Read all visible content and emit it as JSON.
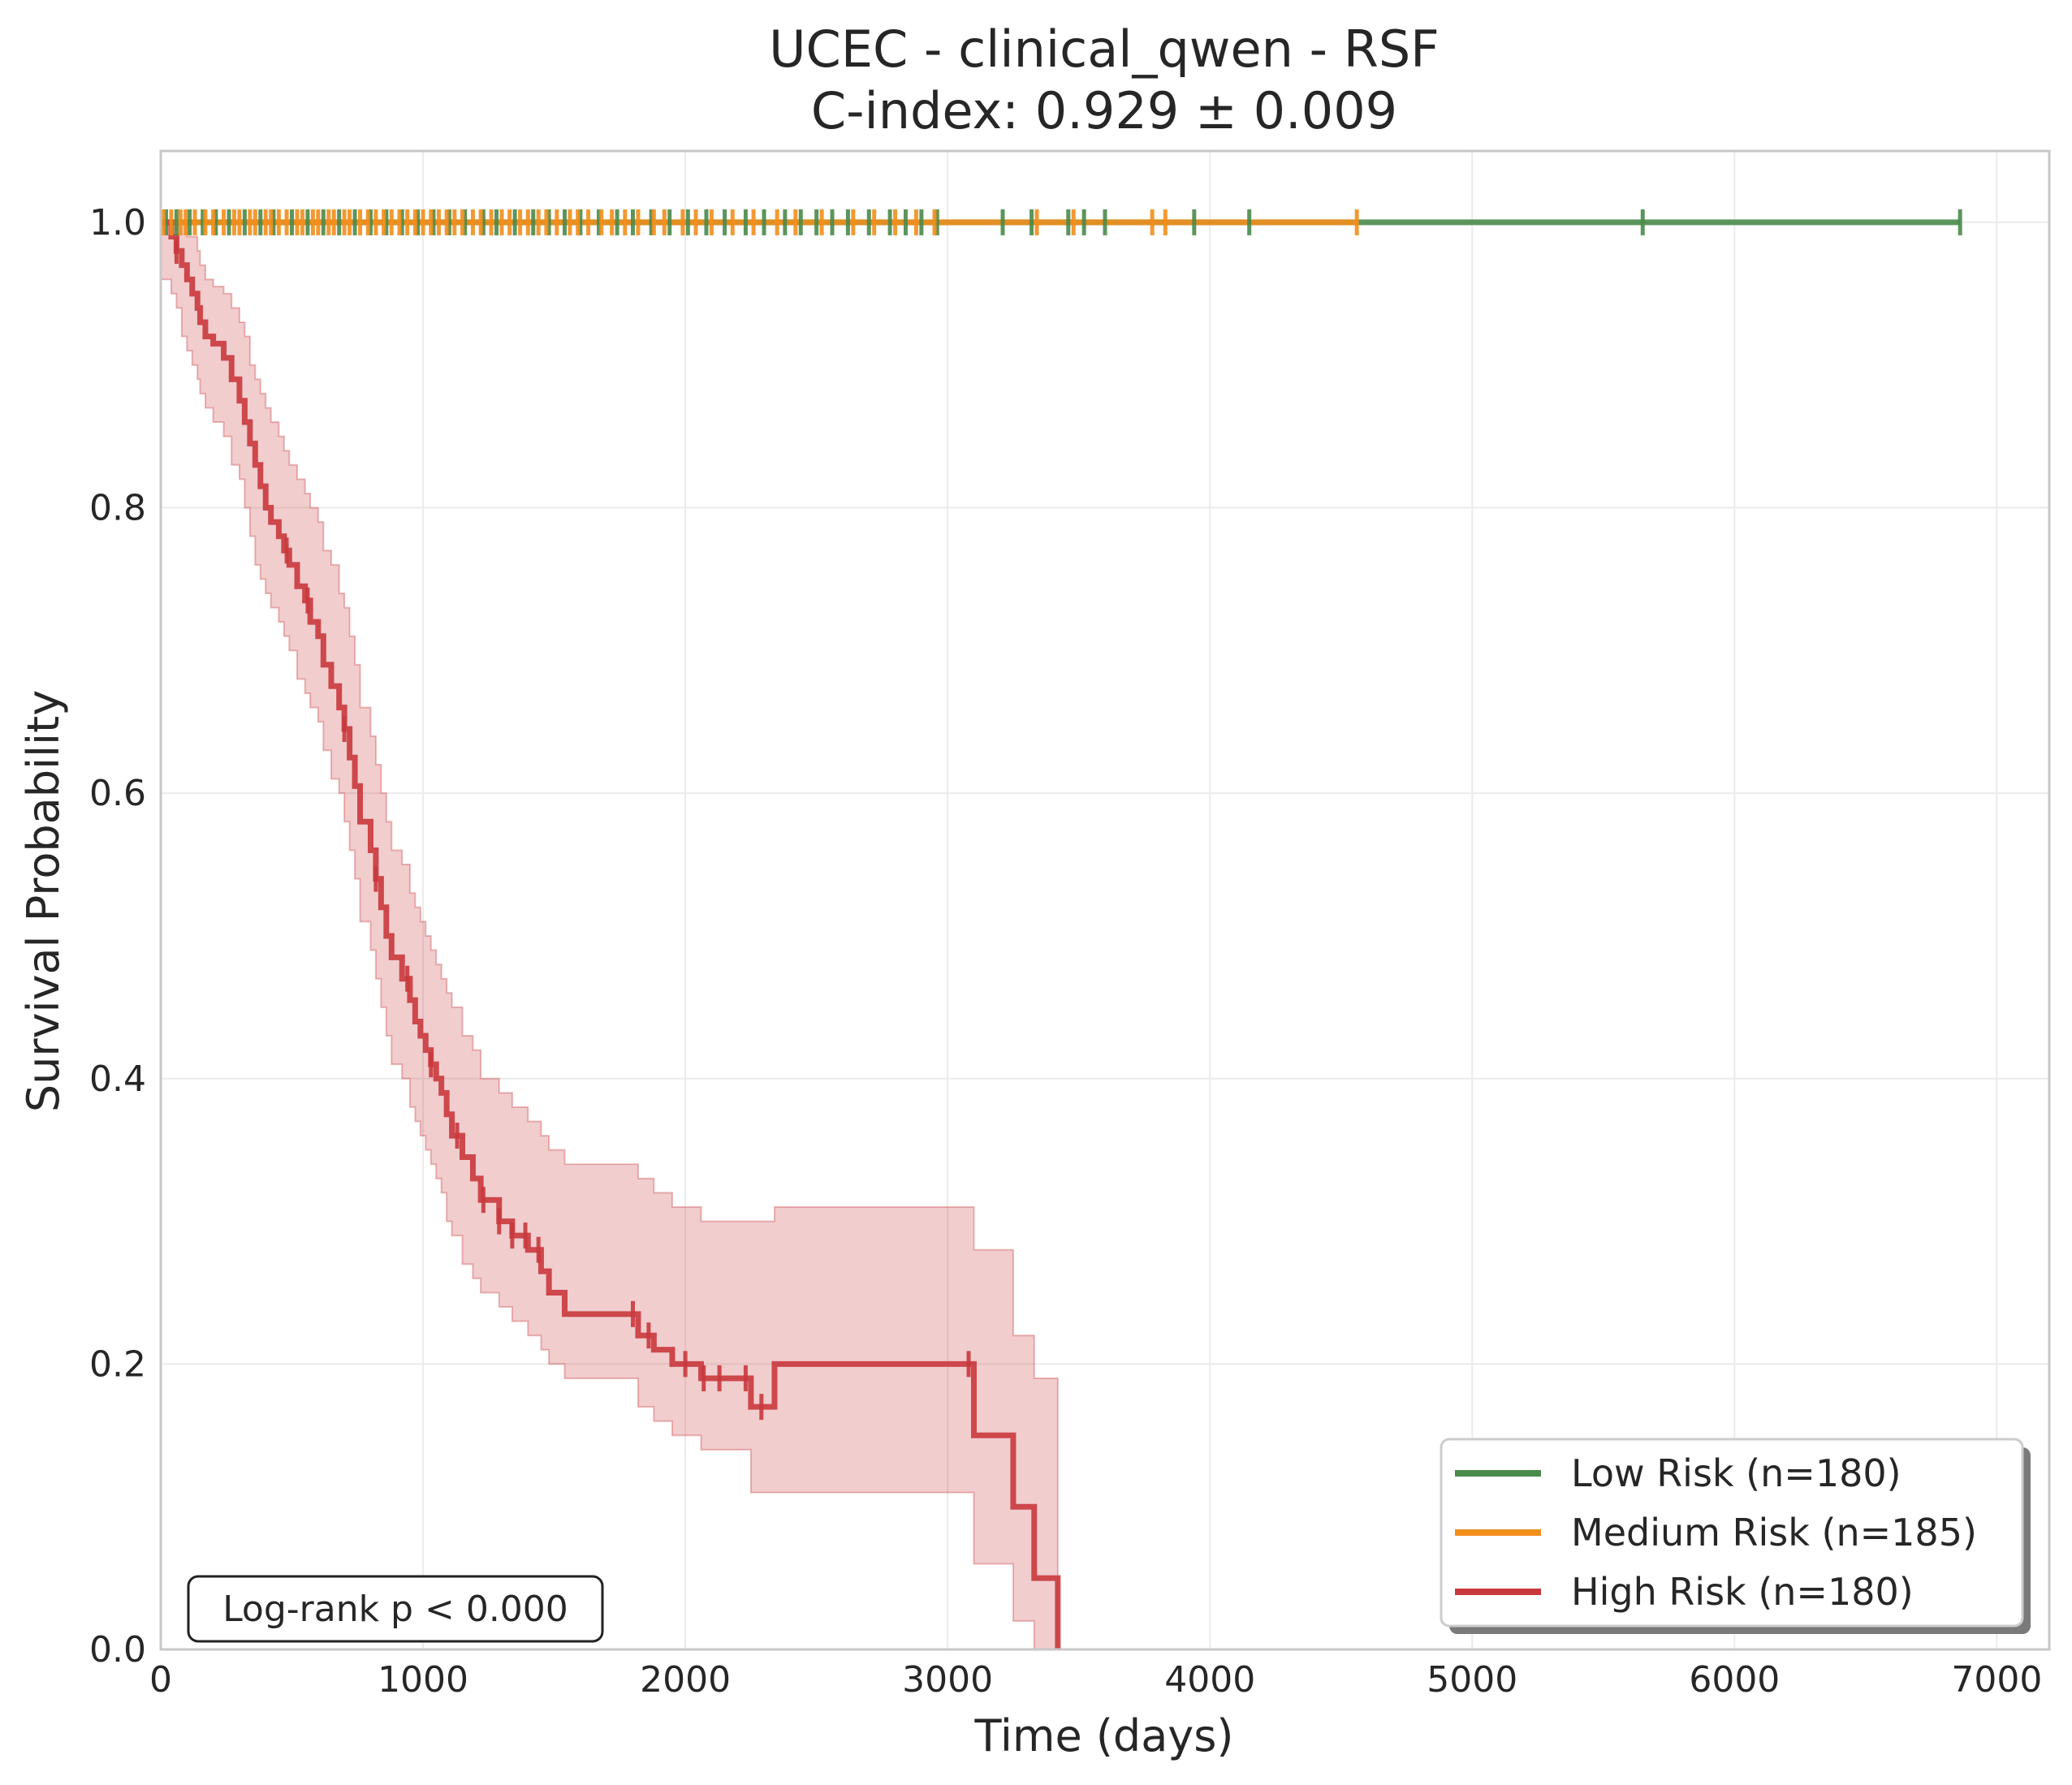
{
  "chart_data": {
    "type": "line",
    "subtype": "kaplan-meier",
    "title": "UCEC - clinical_qwen - RSF",
    "subtitle": "C-index: 0.929 ± 0.009",
    "xlabel": "Time (days)",
    "ylabel": "Survival Probability",
    "xlim": [
      0,
      7200
    ],
    "ylim": [
      0,
      1.05
    ],
    "x_ticks": [
      0,
      1000,
      2000,
      3000,
      4000,
      5000,
      6000,
      7000
    ],
    "x_tick_labels": [
      "0",
      "1000",
      "2000",
      "3000",
      "4000",
      "5000",
      "6000",
      "7000"
    ],
    "y_ticks": [
      0.0,
      0.2,
      0.4,
      0.6,
      0.8,
      1.0
    ],
    "y_tick_labels": [
      "0.0",
      "0.2",
      "0.4",
      "0.6",
      "0.8",
      "1.0"
    ],
    "grid": true,
    "legend_position": "bottom-right",
    "annotation": "Log-rank p < 0.000",
    "series": [
      {
        "name": "Low Risk (n=180)",
        "color": "#4a8a4a",
        "x": [
          0,
          6860
        ],
        "y": [
          1.0,
          1.0
        ],
        "censor_times": [
          20,
          60,
          110,
          160,
          210,
          260,
          320,
          380,
          430,
          500,
          560,
          620,
          680,
          740,
          800,
          860,
          920,
          980,
          1040,
          1100,
          1160,
          1230,
          1280,
          1350,
          1420,
          1480,
          1540,
          1600,
          1670,
          1740,
          1800,
          1870,
          1940,
          2010,
          2080,
          2150,
          2230,
          2300,
          2380,
          2440,
          2500,
          2560,
          2620,
          2700,
          2780,
          2840,
          2900,
          2960,
          3210,
          3320,
          3460,
          3520,
          3600,
          3940,
          4150,
          5650,
          6860
        ]
      },
      {
        "name": "Medium Risk (n=185)",
        "color": "#f28e1c",
        "x": [
          0,
          4560
        ],
        "y": [
          1.0,
          1.0
        ],
        "censor_times": [
          10,
          40,
          75,
          95,
          130,
          170,
          200,
          240,
          280,
          300,
          340,
          360,
          400,
          420,
          450,
          480,
          520,
          540,
          580,
          600,
          640,
          660,
          700,
          720,
          760,
          790,
          820,
          850,
          880,
          910,
          940,
          970,
          1000,
          1030,
          1060,
          1090,
          1120,
          1150,
          1190,
          1220,
          1260,
          1300,
          1330,
          1370,
          1400,
          1440,
          1470,
          1510,
          1560,
          1590,
          1630,
          1680,
          1720,
          1770,
          1820,
          1880,
          1920,
          1990,
          2040,
          2100,
          2180,
          2260,
          2350,
          2420,
          2520,
          2640,
          2720,
          2800,
          2880,
          2950,
          3340,
          3480,
          3780,
          3830,
          4560
        ]
      },
      {
        "name": "High Risk (n=180)",
        "color": "#c9383d",
        "x": [
          0,
          40,
          60,
          80,
          100,
          120,
          140,
          150,
          170,
          200,
          240,
          270,
          300,
          320,
          340,
          360,
          380,
          400,
          420,
          450,
          470,
          490,
          520,
          550,
          570,
          600,
          620,
          650,
          680,
          700,
          720,
          740,
          760,
          800,
          820,
          840,
          860,
          880,
          920,
          950,
          970,
          990,
          1010,
          1030,
          1050,
          1070,
          1090,
          1110,
          1150,
          1190,
          1220,
          1290,
          1340,
          1400,
          1450,
          1480,
          1540,
          1820,
          1880,
          1950,
          2060,
          2250,
          2340,
          3100,
          3250,
          3330,
          3420
        ],
        "y": [
          1.0,
          0.99,
          0.98,
          0.97,
          0.96,
          0.95,
          0.94,
          0.93,
          0.92,
          0.915,
          0.905,
          0.89,
          0.875,
          0.86,
          0.845,
          0.83,
          0.815,
          0.8,
          0.79,
          0.78,
          0.77,
          0.76,
          0.745,
          0.735,
          0.72,
          0.71,
          0.69,
          0.675,
          0.66,
          0.645,
          0.625,
          0.605,
          0.58,
          0.56,
          0.54,
          0.52,
          0.5,
          0.485,
          0.47,
          0.455,
          0.44,
          0.43,
          0.42,
          0.41,
          0.4,
          0.39,
          0.375,
          0.36,
          0.345,
          0.33,
          0.315,
          0.3,
          0.29,
          0.28,
          0.265,
          0.25,
          0.235,
          0.22,
          0.21,
          0.2,
          0.19,
          0.17,
          0.2,
          0.15,
          0.1,
          0.05,
          0.0
        ],
        "ci_lower": [
          0.96,
          0.95,
          0.94,
          0.92,
          0.91,
          0.9,
          0.89,
          0.88,
          0.87,
          0.86,
          0.85,
          0.83,
          0.82,
          0.8,
          0.78,
          0.76,
          0.75,
          0.74,
          0.73,
          0.72,
          0.71,
          0.7,
          0.68,
          0.67,
          0.66,
          0.65,
          0.63,
          0.61,
          0.6,
          0.58,
          0.56,
          0.54,
          0.51,
          0.49,
          0.47,
          0.45,
          0.43,
          0.41,
          0.4,
          0.38,
          0.37,
          0.36,
          0.35,
          0.34,
          0.33,
          0.32,
          0.3,
          0.29,
          0.27,
          0.26,
          0.25,
          0.24,
          0.23,
          0.22,
          0.21,
          0.2,
          0.19,
          0.17,
          0.16,
          0.15,
          0.14,
          0.11,
          0.11,
          0.06,
          0.02,
          0.0,
          0.0
        ],
        "ci_upper": [
          1.0,
          1.0,
          1.0,
          1.0,
          0.99,
          0.99,
          0.98,
          0.97,
          0.96,
          0.955,
          0.95,
          0.94,
          0.93,
          0.92,
          0.9,
          0.89,
          0.88,
          0.87,
          0.86,
          0.85,
          0.84,
          0.83,
          0.82,
          0.81,
          0.8,
          0.79,
          0.77,
          0.76,
          0.74,
          0.73,
          0.71,
          0.69,
          0.66,
          0.64,
          0.62,
          0.6,
          0.58,
          0.56,
          0.55,
          0.53,
          0.52,
          0.51,
          0.5,
          0.49,
          0.48,
          0.47,
          0.46,
          0.45,
          0.43,
          0.42,
          0.4,
          0.39,
          0.38,
          0.37,
          0.36,
          0.35,
          0.34,
          0.33,
          0.32,
          0.31,
          0.3,
          0.3,
          0.31,
          0.28,
          0.22,
          0.19,
          0.19
        ],
        "censor_times": [
          60,
          480,
          560,
          700,
          820,
          940,
          1030,
          1130,
          1230,
          1290,
          1340,
          1390,
          1440,
          1800,
          1860,
          2000,
          2070,
          2130,
          2230,
          2290,
          3080
        ]
      }
    ]
  }
}
